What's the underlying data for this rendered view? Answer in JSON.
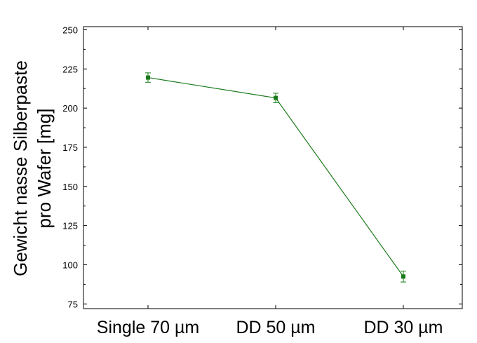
{
  "chart_data": {
    "type": "line",
    "title": "",
    "xlabel": "",
    "ylabel_lines": [
      "Gewicht nasse Silberpaste",
      "pro Wafer [mg]"
    ],
    "categories": [
      "Single 70 µm",
      "DD 50 µm",
      "DD 30 µm"
    ],
    "series": [
      {
        "values": [
          219.5,
          206.5,
          92.5
        ],
        "errors": [
          3.0,
          3.0,
          3.5
        ],
        "color": "#1a7a1a",
        "marker": "square"
      }
    ],
    "ylim": [
      72,
      252
    ],
    "yticks": [
      75,
      100,
      125,
      150,
      175,
      200,
      225,
      250
    ],
    "grid": false,
    "legend": "none"
  }
}
